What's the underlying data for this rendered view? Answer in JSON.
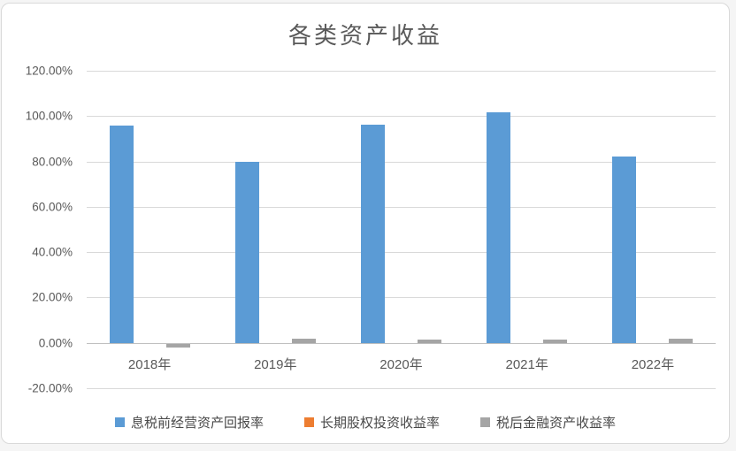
{
  "window": {
    "background": "#FFFFFF",
    "frame_border_color": "#D9D9D9"
  },
  "chart_data": {
    "type": "bar",
    "title": "各类资产收益",
    "categories": [
      "2018年",
      "2019年",
      "2020年",
      "2021年",
      "2022年"
    ],
    "series": [
      {
        "name": "息税前经营资产回报率",
        "color": "#5B9BD5",
        "values": [
          95.7,
          79.7,
          96.4,
          101.5,
          82.3
        ]
      },
      {
        "name": "长期股权投资收益率",
        "color": "#ED7D31",
        "values": [
          0,
          0,
          0,
          0,
          0
        ]
      },
      {
        "name": "税后金融资产收益率",
        "color": "#A5A5A5",
        "values": [
          -2.1,
          1.7,
          1.5,
          1.3,
          1.9
        ]
      }
    ],
    "value_unit": "percent",
    "ylim": [
      -20,
      120
    ],
    "y_ticks": [
      120,
      100,
      80,
      60,
      40,
      20,
      0,
      -20
    ],
    "y_tick_labels": [
      "120.00%",
      "100.00%",
      "80.00%",
      "60.00%",
      "40.00%",
      "20.00%",
      "0.00%",
      "-20.00%"
    ],
    "grid": true,
    "gridline_color": "#D9D9D9",
    "zero_axis_color": "#BFBFBF",
    "text_color": "#595959",
    "legend_position": "bottom"
  }
}
